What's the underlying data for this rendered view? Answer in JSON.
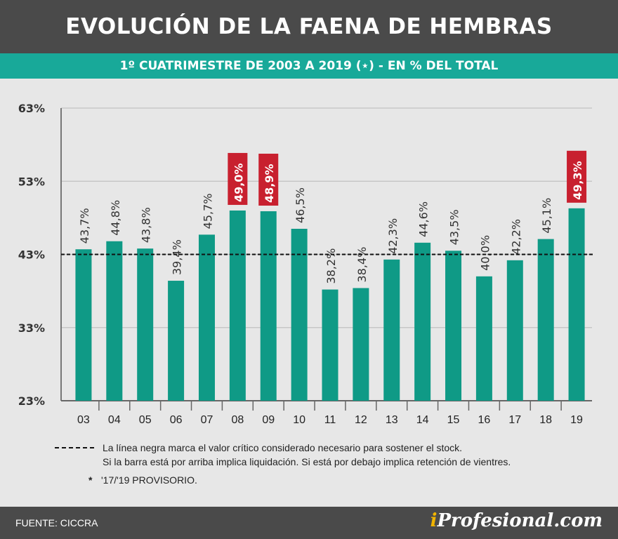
{
  "header": {
    "title": "EVOLUCIÓN DE LA FAENA DE HEMBRAS",
    "subtitle": "1º CUATRIMESTRE DE 2003 A 2019 (⋆) - EN % DEL TOTAL"
  },
  "chart_data": {
    "type": "bar",
    "categories": [
      "03",
      "04",
      "05",
      "06",
      "07",
      "08",
      "09",
      "10",
      "11",
      "12",
      "13",
      "14",
      "15",
      "16",
      "17",
      "18",
      "19"
    ],
    "values": [
      43.7,
      44.8,
      43.8,
      39.4,
      45.7,
      49.0,
      48.9,
      46.5,
      38.2,
      38.4,
      42.3,
      44.6,
      43.5,
      40.0,
      42.2,
      45.1,
      49.3
    ],
    "value_labels": [
      "43,7%",
      "44,8%",
      "43,8%",
      "39,4%",
      "45,7%",
      "49,0%",
      "48,9%",
      "46,5%",
      "38,2%",
      "38,4%",
      "42,3%",
      "44,6%",
      "43,5%",
      "40,0%",
      "42,2%",
      "45,1%",
      "49,3%"
    ],
    "highlighted": [
      false,
      false,
      false,
      false,
      false,
      true,
      true,
      false,
      false,
      false,
      false,
      false,
      false,
      false,
      false,
      false,
      true
    ],
    "ylim": [
      23,
      63
    ],
    "yticks": [
      23,
      33,
      43,
      53,
      63
    ],
    "ytick_labels": [
      "23%",
      "33%",
      "43%",
      "53%",
      "63%"
    ],
    "reference_line": 43,
    "grid": true,
    "colors": {
      "bar": "#0f9a86",
      "highlight_label_bg": "#c8202f",
      "grid": "#c2c2c2",
      "reference_line": "#111111"
    }
  },
  "legend": {
    "line_text_1": "La línea negra marca el valor crítico considerado necesario para sostener el stock.",
    "line_text_2": "Si la barra está por arriba implica liquidación. Si está por debajo implica retención de vientres.",
    "star": "*",
    "note": "'17/'19 PROVISORIO."
  },
  "footer": {
    "source": "FUENTE: CICCRA",
    "brand_i": "i",
    "brand_rest": "Profesional.com"
  }
}
